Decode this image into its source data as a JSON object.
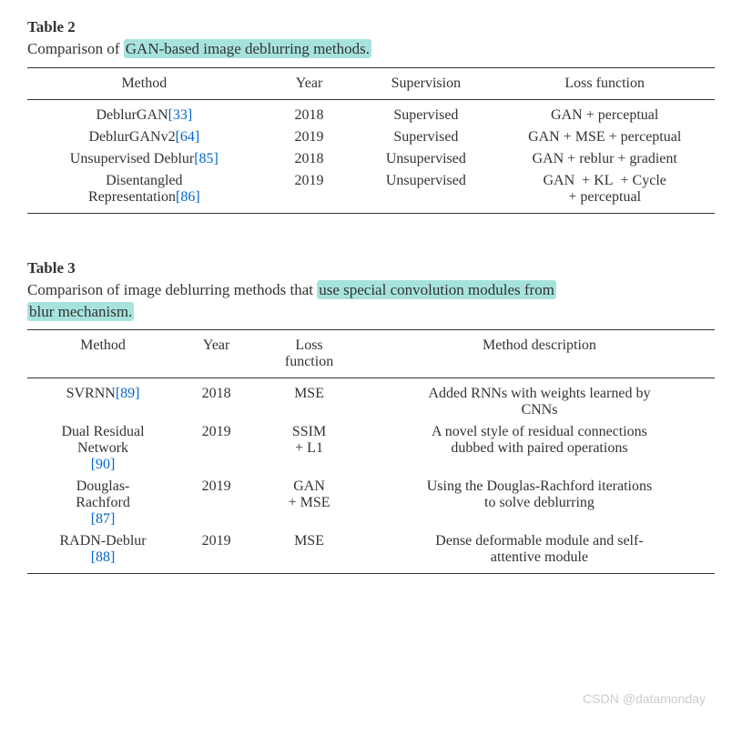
{
  "colors": {
    "text": "#333333",
    "ref_link": "#0066cc",
    "highlight_bg": "#a7e3dd",
    "rule": "#333333",
    "background": "#ffffff",
    "watermark": "#cccccc"
  },
  "typography": {
    "body_font": "Georgia / serif",
    "body_size_pt": 12,
    "label_weight": "bold"
  },
  "table2": {
    "label": "Table 2",
    "caption_pre": "Comparison of ",
    "caption_hl": "GAN-based image deblurring methods.",
    "columns": [
      "Method",
      "Year",
      "Supervision",
      "Loss function"
    ],
    "col_widths_pct": [
      34,
      14,
      20,
      32
    ],
    "rows": [
      {
        "method": "DeblurGAN",
        "ref": "[33]",
        "year": "2018",
        "sup": "Supervised",
        "loss": "GAN  + perceptual"
      },
      {
        "method": "DeblurGANv2",
        "ref": "[64]",
        "year": "2019",
        "sup": "Supervised",
        "loss": "GAN + MSE + perceptual"
      },
      {
        "method": "Unsupervised Deblur",
        "ref": "[85]",
        "year": "2018",
        "sup": "Unsupervised",
        "loss": "GAN  + reblur  + gradient"
      },
      {
        "method": "Disentangled Representation",
        "ref": "[86]",
        "year": "2019",
        "sup": "Unsupervised",
        "loss": "GAN  + KL  + Cycle + perceptual"
      }
    ]
  },
  "table3": {
    "label": "Table 3",
    "caption_pre": "Comparison of image deblurring methods that ",
    "caption_hl1": "use special convolution modules from",
    "caption_hl2": "blur mechanism.",
    "columns": [
      "Method",
      "Year",
      "Loss function",
      "Method description"
    ],
    "col_widths_pct": [
      22,
      11,
      16,
      51
    ],
    "rows": [
      {
        "method": "SVRNN",
        "ref": "[89]",
        "year": "2018",
        "loss": "MSE",
        "desc": "Added RNNs with weights learned by CNNs"
      },
      {
        "method": "Dual Residual Network",
        "ref": "[90]",
        "year": "2019",
        "loss": "SSIM + L1",
        "desc": "A novel style of residual connections dubbed with paired operations"
      },
      {
        "method": "Douglas-Rachford",
        "ref": "[87]",
        "year": "2019",
        "loss": "GAN + MSE",
        "desc": "Using the Douglas-Rachford iterations to solve deblurring"
      },
      {
        "method": "RADN-Deblur",
        "ref": "[88]",
        "year": "2019",
        "loss": "MSE",
        "desc": "Dense deformable module and self-attentive module"
      }
    ]
  },
  "watermark": "CSDN @datamonday"
}
